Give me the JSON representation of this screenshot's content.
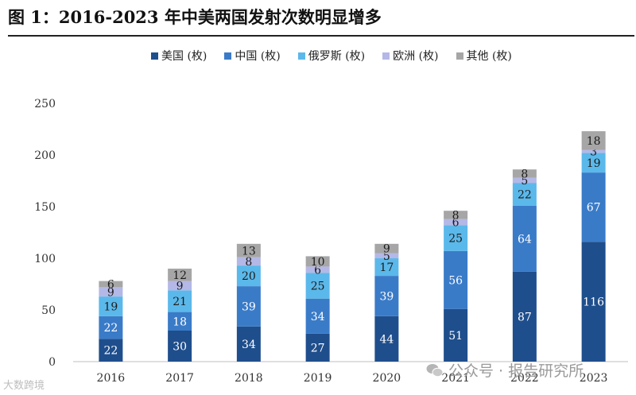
{
  "chart_data": {
    "type": "bar",
    "stacked": true,
    "title": "图 1：2016-2023 年中美两国发射次数明显增多",
    "categories": [
      "2016",
      "2017",
      "2018",
      "2019",
      "2020",
      "2021",
      "2022",
      "2023"
    ],
    "series": [
      {
        "name": "美国 (枚)",
        "color": "#1f4e8c",
        "values": [
          22,
          30,
          34,
          27,
          44,
          51,
          87,
          116
        ]
      },
      {
        "name": "中国 (枚)",
        "color": "#3a7bc8",
        "values": [
          22,
          18,
          39,
          34,
          39,
          56,
          64,
          67
        ]
      },
      {
        "name": "俄罗斯 (枚)",
        "color": "#5bb8ea",
        "values": [
          19,
          21,
          20,
          25,
          17,
          25,
          22,
          19
        ]
      },
      {
        "name": "欧洲 (枚)",
        "color": "#b4b8e6",
        "values": [
          9,
          9,
          8,
          6,
          5,
          6,
          5,
          3
        ]
      },
      {
        "name": "其他 (枚)",
        "color": "#a6a6a6",
        "values": [
          6,
          12,
          13,
          10,
          9,
          8,
          8,
          18
        ]
      }
    ],
    "y_ticks": [
      0,
      50,
      100,
      150,
      200,
      250
    ],
    "ylim": [
      0,
      250
    ],
    "xlabel": "",
    "ylabel": "",
    "legend_position": "top"
  },
  "watermark": {
    "right_text": "公众号 · 报告研究所",
    "left_text": "大数跨境"
  }
}
